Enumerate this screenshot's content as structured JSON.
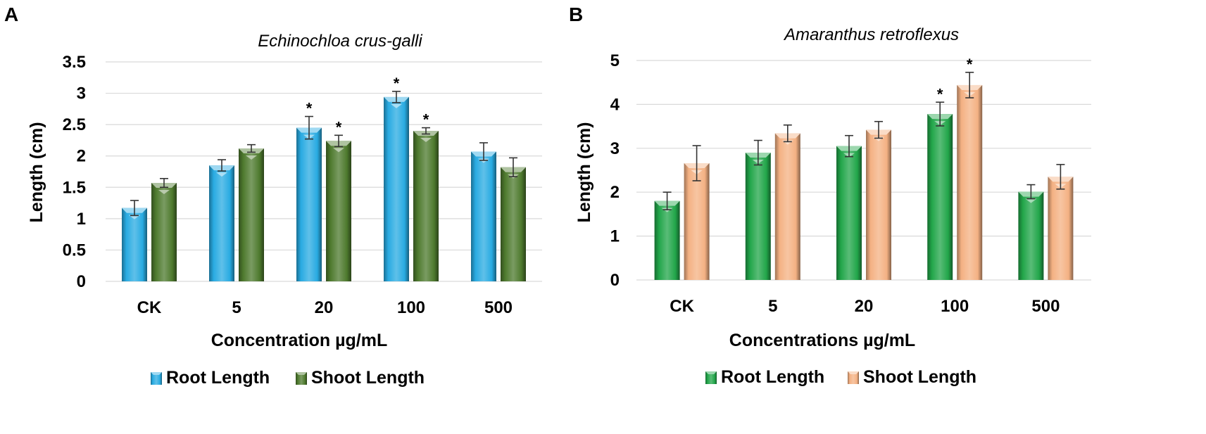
{
  "chart_data": [
    {
      "panel": "A",
      "type": "bar",
      "title": "Echinochloa crus-galli",
      "xlabel": "Concentration µg/mL",
      "ylabel": "Length (cm)",
      "ylim": [
        0,
        3.5
      ],
      "yticks": [
        "0",
        "0.5",
        "1",
        "1.5",
        "2",
        "2.5",
        "3",
        "3.5"
      ],
      "categories": [
        "CK",
        "5",
        "20",
        "100",
        "500"
      ],
      "legend_position": "bottom",
      "grid": true,
      "series": [
        {
          "name": "Root Length",
          "color": "#29abe2",
          "values": [
            1.17,
            1.85,
            2.45,
            2.94,
            2.07
          ],
          "errors": [
            0.12,
            0.09,
            0.18,
            0.09,
            0.14
          ],
          "significant": [
            false,
            false,
            true,
            true,
            false
          ]
        },
        {
          "name": "Shoot Length",
          "color": "#4e7a2e",
          "values": [
            1.57,
            2.12,
            2.24,
            2.4,
            1.82
          ],
          "errors": [
            0.07,
            0.06,
            0.09,
            0.05,
            0.15
          ],
          "significant": [
            false,
            false,
            true,
            true,
            false
          ]
        }
      ]
    },
    {
      "panel": "B",
      "type": "bar",
      "title": "Amaranthus retroflexus",
      "xlabel": "Concentrations µg/mL",
      "ylabel": "Length (cm)",
      "ylim": [
        0,
        5
      ],
      "yticks": [
        "0",
        "1",
        "2",
        "3",
        "4",
        "5"
      ],
      "categories": [
        "CK",
        "5",
        "20",
        "100",
        "500"
      ],
      "legend_position": "bottom",
      "grid": true,
      "series": [
        {
          "name": "Root Length",
          "color": "#22a64a",
          "values": [
            1.8,
            2.9,
            3.05,
            3.78,
            2.01
          ],
          "errors": [
            0.2,
            0.28,
            0.24,
            0.27,
            0.16
          ],
          "significant": [
            false,
            false,
            false,
            true,
            false
          ]
        },
        {
          "name": "Shoot Length",
          "color": "#f4b183",
          "values": [
            2.66,
            3.34,
            3.42,
            4.44,
            2.35
          ],
          "errors": [
            0.4,
            0.19,
            0.19,
            0.29,
            0.28
          ],
          "significant": [
            false,
            false,
            false,
            true,
            false
          ]
        }
      ]
    }
  ],
  "sig_marker": "*"
}
